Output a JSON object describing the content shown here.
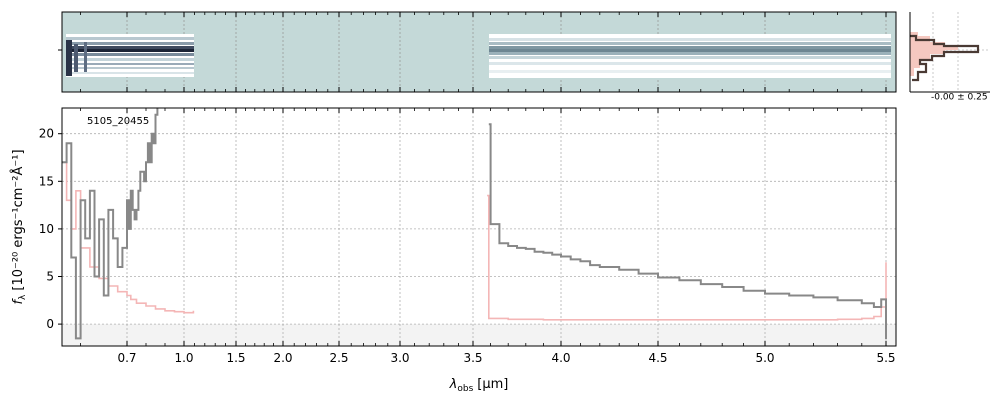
{
  "chart_data": {
    "type": "line",
    "object_label": "5105_20455",
    "xlabel": "λ",
    "xlabel_sub": "obs",
    "xlabel_unit": "[μm]",
    "ylabel": "f",
    "ylabel_sub": "λ",
    "ylabel_unit": "[10⁻²⁰ ergs⁻¹cm⁻²Å⁻¹]",
    "ylim": [
      -2.3,
      22.7
    ],
    "yticks": [
      0,
      5,
      10,
      15,
      20
    ],
    "xticks": [
      {
        "label": "0.7",
        "value": 0.7
      },
      {
        "label": "1.0",
        "value": 1.0
      },
      {
        "label": "1.5",
        "value": 1.5
      },
      {
        "label": "2.0",
        "value": 2.0
      },
      {
        "label": "2.5",
        "value": 2.5
      },
      {
        "label": "3.0",
        "value": 3.0
      },
      {
        "label": "3.5",
        "value": 3.5
      },
      {
        "label": "4.0",
        "value": 4.0
      },
      {
        "label": "4.5",
        "value": 4.5
      },
      {
        "label": "5.0",
        "value": 5.0
      },
      {
        "label": "5.5",
        "value": 5.5
      }
    ],
    "xlim": [
      0.56,
      5.53
    ],
    "grid": true,
    "series": [
      {
        "color": "#888888",
        "segments": [
          [
            [
              0.56,
              17
            ],
            [
              0.57,
              19
            ],
            [
              0.58,
              7
            ],
            [
              0.59,
              -1.5
            ],
            [
              0.6,
              13
            ],
            [
              0.61,
              9
            ],
            [
              0.62,
              14
            ],
            [
              0.63,
              5
            ],
            [
              0.64,
              11
            ],
            [
              0.65,
              3
            ],
            [
              0.66,
              12
            ],
            [
              0.67,
              9
            ],
            [
              0.68,
              6
            ],
            [
              0.69,
              8
            ],
            [
              0.7,
              13
            ],
            [
              0.71,
              10
            ],
            [
              0.72,
              14
            ],
            [
              0.73,
              12
            ],
            [
              0.74,
              11
            ],
            [
              0.75,
              12
            ],
            [
              0.76,
              14
            ],
            [
              0.77,
              16
            ],
            [
              0.78,
              16
            ],
            [
              0.79,
              15
            ],
            [
              0.8,
              17
            ],
            [
              0.81,
              19
            ],
            [
              0.82,
              17
            ],
            [
              0.83,
              20
            ],
            [
              0.84,
              19
            ],
            [
              0.85,
              22
            ],
            [
              0.86,
              23
            ]
          ],
          [
            [
              3.59,
              21
            ],
            [
              3.6,
              10.5
            ],
            [
              3.65,
              8.5
            ],
            [
              3.7,
              8.2
            ],
            [
              3.75,
              8
            ],
            [
              3.8,
              7.9
            ],
            [
              3.85,
              7.6
            ],
            [
              3.9,
              7.5
            ],
            [
              3.95,
              7.3
            ],
            [
              4.0,
              7.1
            ],
            [
              4.05,
              6.8
            ],
            [
              4.1,
              6.6
            ],
            [
              4.15,
              6.2
            ],
            [
              4.2,
              6.0
            ],
            [
              4.3,
              5.7
            ],
            [
              4.4,
              5.3
            ],
            [
              4.5,
              4.9
            ],
            [
              4.6,
              4.6
            ],
            [
              4.7,
              4.2
            ],
            [
              4.8,
              3.9
            ],
            [
              4.9,
              3.5
            ],
            [
              5.0,
              3.2
            ],
            [
              5.1,
              3.0
            ],
            [
              5.2,
              2.8
            ],
            [
              5.3,
              2.5
            ],
            [
              5.4,
              2.2
            ],
            [
              5.45,
              1.8
            ],
            [
              5.48,
              2.6
            ],
            [
              5.5,
              -1.6
            ]
          ]
        ]
      },
      {
        "color": "#f4b6b6",
        "segments": [
          [
            [
              0.56,
              17
            ],
            [
              0.57,
              13
            ],
            [
              0.58,
              10
            ],
            [
              0.59,
              14
            ],
            [
              0.6,
              8
            ],
            [
              0.62,
              6
            ],
            [
              0.64,
              4.8
            ],
            [
              0.66,
              4.0
            ],
            [
              0.68,
              3.4
            ],
            [
              0.7,
              3.0
            ],
            [
              0.72,
              2.6
            ],
            [
              0.75,
              2.2
            ],
            [
              0.8,
              1.9
            ],
            [
              0.85,
              1.6
            ],
            [
              0.9,
              1.4
            ],
            [
              0.95,
              1.3
            ],
            [
              1.0,
              1.2
            ],
            [
              1.05,
              1.2
            ],
            [
              1.09,
              1.4
            ]
          ],
          [
            [
              3.58,
              13.5
            ],
            [
              3.59,
              0.6
            ],
            [
              3.7,
              0.5
            ],
            [
              3.9,
              0.45
            ],
            [
              4.2,
              0.45
            ],
            [
              4.5,
              0.45
            ],
            [
              4.8,
              0.45
            ],
            [
              5.1,
              0.45
            ],
            [
              5.3,
              0.5
            ],
            [
              5.4,
              0.6
            ],
            [
              5.45,
              0.8
            ],
            [
              5.48,
              1.8
            ],
            [
              5.5,
              6.5
            ]
          ]
        ]
      }
    ]
  },
  "side_panel": {
    "label": "-0.00 ± 0.25"
  }
}
